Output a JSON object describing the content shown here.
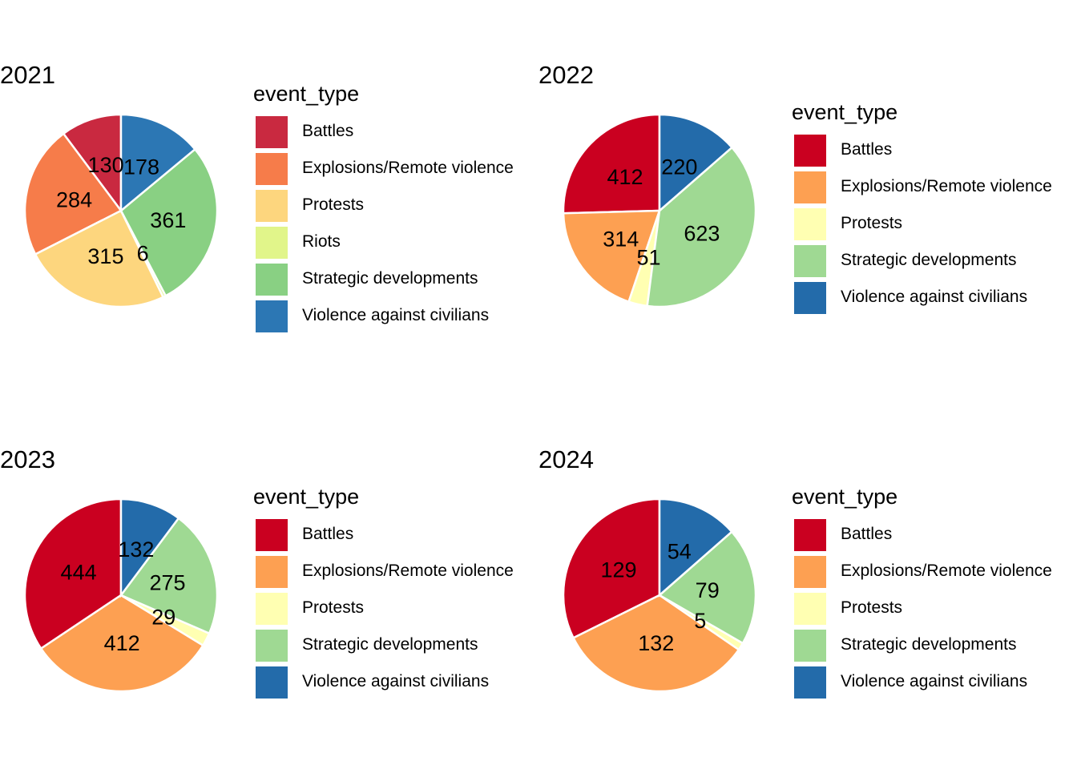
{
  "chart_data": [
    {
      "type": "pie",
      "title": "2021",
      "legend_title": "event_type",
      "legend_position": "right",
      "categories": [
        "Battles",
        "Explosions/Remote violence",
        "Protests",
        "Riots",
        "Strategic developments",
        "Violence against civilians"
      ],
      "values": [
        130,
        284,
        315,
        6,
        361,
        178
      ],
      "colors": [
        "#C92940",
        "#F67C4A",
        "#FDD67E",
        "#E1F58A",
        "#89D083",
        "#2C77B4"
      ]
    },
    {
      "type": "pie",
      "title": "2022",
      "legend_title": "event_type",
      "legend_position": "right",
      "categories": [
        "Battles",
        "Explosions/Remote violence",
        "Protests",
        "Strategic developments",
        "Violence against civilians"
      ],
      "values": [
        412,
        314,
        51,
        623,
        220
      ],
      "colors": [
        "#CA0020",
        "#FDA052",
        "#FFFFB2",
        "#9FD993",
        "#236BAA"
      ]
    },
    {
      "type": "pie",
      "title": "2023",
      "legend_title": "event_type",
      "legend_position": "right",
      "categories": [
        "Battles",
        "Explosions/Remote violence",
        "Protests",
        "Strategic developments",
        "Violence against civilians"
      ],
      "values": [
        444,
        412,
        29,
        275,
        132
      ],
      "colors": [
        "#CA0020",
        "#FDA052",
        "#FFFFB2",
        "#9FD993",
        "#236BAA"
      ]
    },
    {
      "type": "pie",
      "title": "2024",
      "legend_title": "event_type",
      "legend_position": "right",
      "categories": [
        "Battles",
        "Explosions/Remote violence",
        "Protests",
        "Strategic developments",
        "Violence against civilians"
      ],
      "values": [
        129,
        132,
        5,
        79,
        54
      ],
      "colors": [
        "#CA0020",
        "#FDA052",
        "#FFFFB2",
        "#9FD993",
        "#236BAA"
      ]
    }
  ]
}
